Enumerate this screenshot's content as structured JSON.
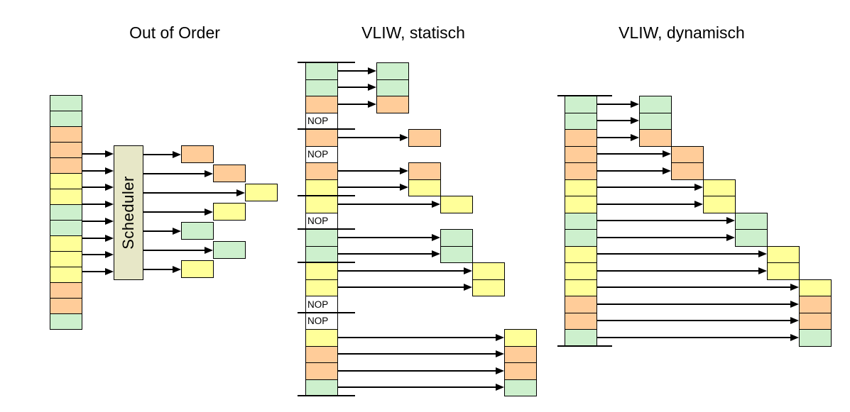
{
  "titles": [
    "Out of Order",
    "VLIW, statisch",
    "VLIW, dynamisch"
  ],
  "nop_label": "NOP",
  "scheduler_label": "Scheduler",
  "palette": {
    "green": "#cdf0cd",
    "orange": "#ffcc99",
    "yellow": "#ffff99",
    "nop": "#ffffff",
    "scheduler": "#e7e7c7"
  },
  "instruction_stream": [
    "green",
    "green",
    "orange",
    "orange",
    "orange",
    "yellow",
    "yellow",
    "green",
    "green",
    "yellow",
    "yellow",
    "yellow",
    "orange",
    "orange",
    "green"
  ],
  "out_of_order": {
    "issued": [
      {
        "row": 0,
        "col": 0,
        "color": "orange"
      },
      {
        "row": 1,
        "col": 1,
        "color": "orange"
      },
      {
        "row": 2,
        "col": 2,
        "color": "yellow"
      },
      {
        "row": 3,
        "col": 1,
        "color": "yellow"
      },
      {
        "row": 4,
        "col": 0,
        "color": "green"
      },
      {
        "row": 5,
        "col": 1,
        "color": "green"
      },
      {
        "row": 6,
        "col": 0,
        "color": "yellow"
      }
    ]
  },
  "vliw_static": {
    "column": [
      "green",
      "green",
      "orange",
      "nop",
      "orange",
      "nop",
      "orange",
      "yellow",
      "yellow",
      "nop",
      "green",
      "green",
      "yellow",
      "yellow",
      "nop",
      "nop",
      "yellow",
      "orange",
      "orange",
      "green"
    ],
    "bundle_separators_before_rows": [
      0,
      4,
      8,
      10,
      12,
      15,
      20
    ],
    "schedule": [
      {
        "row": 0,
        "col": 0,
        "color": "green"
      },
      {
        "row": 1,
        "col": 0,
        "color": "green"
      },
      {
        "row": 2,
        "col": 0,
        "color": "orange"
      },
      {
        "row": 4,
        "col": 1,
        "color": "orange"
      },
      {
        "row": 6,
        "col": 1,
        "color": "orange"
      },
      {
        "row": 7,
        "col": 1,
        "color": "yellow"
      },
      {
        "row": 8,
        "col": 2,
        "color": "yellow"
      },
      {
        "row": 10,
        "col": 2,
        "color": "green"
      },
      {
        "row": 11,
        "col": 2,
        "color": "green"
      },
      {
        "row": 12,
        "col": 3,
        "color": "yellow"
      },
      {
        "row": 13,
        "col": 3,
        "color": "yellow"
      },
      {
        "row": 16,
        "col": 4,
        "color": "yellow"
      },
      {
        "row": 17,
        "col": 4,
        "color": "orange"
      },
      {
        "row": 18,
        "col": 4,
        "color": "orange"
      },
      {
        "row": 19,
        "col": 4,
        "color": "green"
      }
    ]
  },
  "vliw_dynamic": {
    "column": [
      "green",
      "green",
      "orange",
      "orange",
      "orange",
      "yellow",
      "yellow",
      "green",
      "green",
      "yellow",
      "yellow",
      "yellow",
      "orange",
      "orange",
      "green"
    ],
    "bundle_separators_before_rows": [
      0,
      15
    ],
    "schedule": [
      {
        "row": 0,
        "col": 0,
        "color": "green"
      },
      {
        "row": 1,
        "col": 0,
        "color": "green"
      },
      {
        "row": 2,
        "col": 0,
        "color": "orange"
      },
      {
        "row": 3,
        "col": 1,
        "color": "orange"
      },
      {
        "row": 4,
        "col": 1,
        "color": "orange"
      },
      {
        "row": 5,
        "col": 2,
        "color": "yellow"
      },
      {
        "row": 6,
        "col": 2,
        "color": "yellow"
      },
      {
        "row": 7,
        "col": 3,
        "color": "green"
      },
      {
        "row": 8,
        "col": 3,
        "color": "green"
      },
      {
        "row": 9,
        "col": 4,
        "color": "yellow"
      },
      {
        "row": 10,
        "col": 4,
        "color": "yellow"
      },
      {
        "row": 11,
        "col": 5,
        "color": "yellow"
      },
      {
        "row": 12,
        "col": 5,
        "color": "orange"
      },
      {
        "row": 13,
        "col": 5,
        "color": "orange"
      },
      {
        "row": 14,
        "col": 5,
        "color": "green"
      }
    ]
  }
}
